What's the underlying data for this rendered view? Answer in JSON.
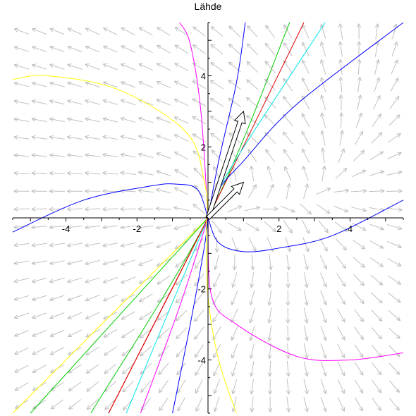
{
  "chart_data": {
    "type": "line",
    "title": "Lähde",
    "xlabel": "",
    "ylabel": "",
    "xlim": [
      -5.5,
      5.5
    ],
    "ylim": [
      -5.5,
      5.5
    ],
    "x_ticks": [
      -4,
      -2,
      2,
      4
    ],
    "y_ticks": [
      -4,
      -2,
      2,
      4
    ],
    "x_tick_labels": [
      "-4",
      "-2",
      "2",
      "4"
    ],
    "y_tick_labels": [
      "-4",
      "-2",
      "2",
      "4"
    ],
    "grid": false,
    "direction_field": {
      "color": "#c0c0c0",
      "description": "arrows point away from the origin (source), turning leftward in the far field"
    },
    "eigenvectors": [
      {
        "x": [
          0,
          1.0
        ],
        "y": [
          0,
          3.0
        ]
      },
      {
        "x": [
          0,
          1.0
        ],
        "y": [
          0,
          1.0
        ]
      }
    ],
    "series": [
      {
        "color": "#ff00ff",
        "x": [
          -0.8,
          -0.5,
          -0.2,
          0.0
        ],
        "y": [
          5.5,
          4.9,
          3.0,
          0.0
        ]
      },
      {
        "color": "#0000ff",
        "x": [
          0.0,
          0.3,
          0.8,
          1.05
        ],
        "y": [
          0.0,
          1.6,
          3.8,
          5.5
        ]
      },
      {
        "color": "#00cc00",
        "x": [
          -3.3,
          0.0,
          2.3
        ],
        "y": [
          -5.5,
          0.0,
          5.5
        ]
      },
      {
        "color": "#dd0000",
        "x": [
          -2.8,
          0.0,
          2.7
        ],
        "y": [
          -5.5,
          0.0,
          5.5
        ]
      },
      {
        "color": "#00e5e5",
        "x": [
          -2.3,
          0.0,
          0.7,
          3.3
        ],
        "y": [
          -5.5,
          0.0,
          1.5,
          5.5
        ]
      },
      {
        "color": "#0000ff",
        "x": [
          0.0,
          0.3,
          1.0,
          2.5,
          5.5
        ],
        "y": [
          0.0,
          0.8,
          1.6,
          3.2,
          5.5
        ]
      },
      {
        "color": "#ffff00",
        "x": [
          -5.5,
          -4.5,
          -2.5,
          -0.6,
          -0.1,
          0.0
        ],
        "y": [
          3.9,
          4.0,
          3.6,
          2.4,
          1.0,
          0.0
        ]
      },
      {
        "color": "#0000ff",
        "x": [
          -5.5,
          -3.5,
          -1.6,
          -0.9,
          -0.3,
          0.0
        ],
        "y": [
          -0.4,
          0.5,
          0.9,
          0.95,
          0.8,
          0.0
        ]
      },
      {
        "color": "#0000ff",
        "x": [
          0.0,
          0.3,
          1.0,
          2.0,
          3.5,
          5.5
        ],
        "y": [
          0.0,
          -0.7,
          -0.95,
          -0.85,
          -0.5,
          0.5
        ]
      },
      {
        "color": "#ff00ff",
        "x": [
          0.0,
          0.1,
          0.8,
          2.5,
          4.0,
          5.5
        ],
        "y": [
          0.0,
          -2.2,
          -3.0,
          -3.9,
          -4.0,
          -3.8
        ]
      },
      {
        "color": "#ffff00",
        "x": [
          -5.5,
          -2.0,
          0.0
        ],
        "y": [
          -5.5,
          -2.0,
          0.0
        ]
      },
      {
        "color": "#00cc00",
        "x": [
          -5.0,
          -2.0,
          0.0
        ],
        "y": [
          -5.5,
          -2.2,
          0.0
        ]
      },
      {
        "color": "#dd0000",
        "x": [
          -2.8,
          0.0
        ],
        "y": [
          -5.5,
          0.0
        ]
      },
      {
        "color": "#ff00ff",
        "x": [
          -1.9,
          -0.8,
          0.0
        ],
        "y": [
          -5.5,
          -2.5,
          0.0
        ]
      },
      {
        "color": "#0000ff",
        "x": [
          -1.0,
          -0.5,
          -0.1,
          0.0
        ],
        "y": [
          -5.5,
          -3.0,
          -0.8,
          0.0
        ]
      },
      {
        "color": "#ffff00",
        "x": [
          -0.05,
          0.0,
          0.3,
          0.8
        ],
        "y": [
          0.0,
          -2.2,
          -4.0,
          -5.5
        ]
      }
    ]
  }
}
